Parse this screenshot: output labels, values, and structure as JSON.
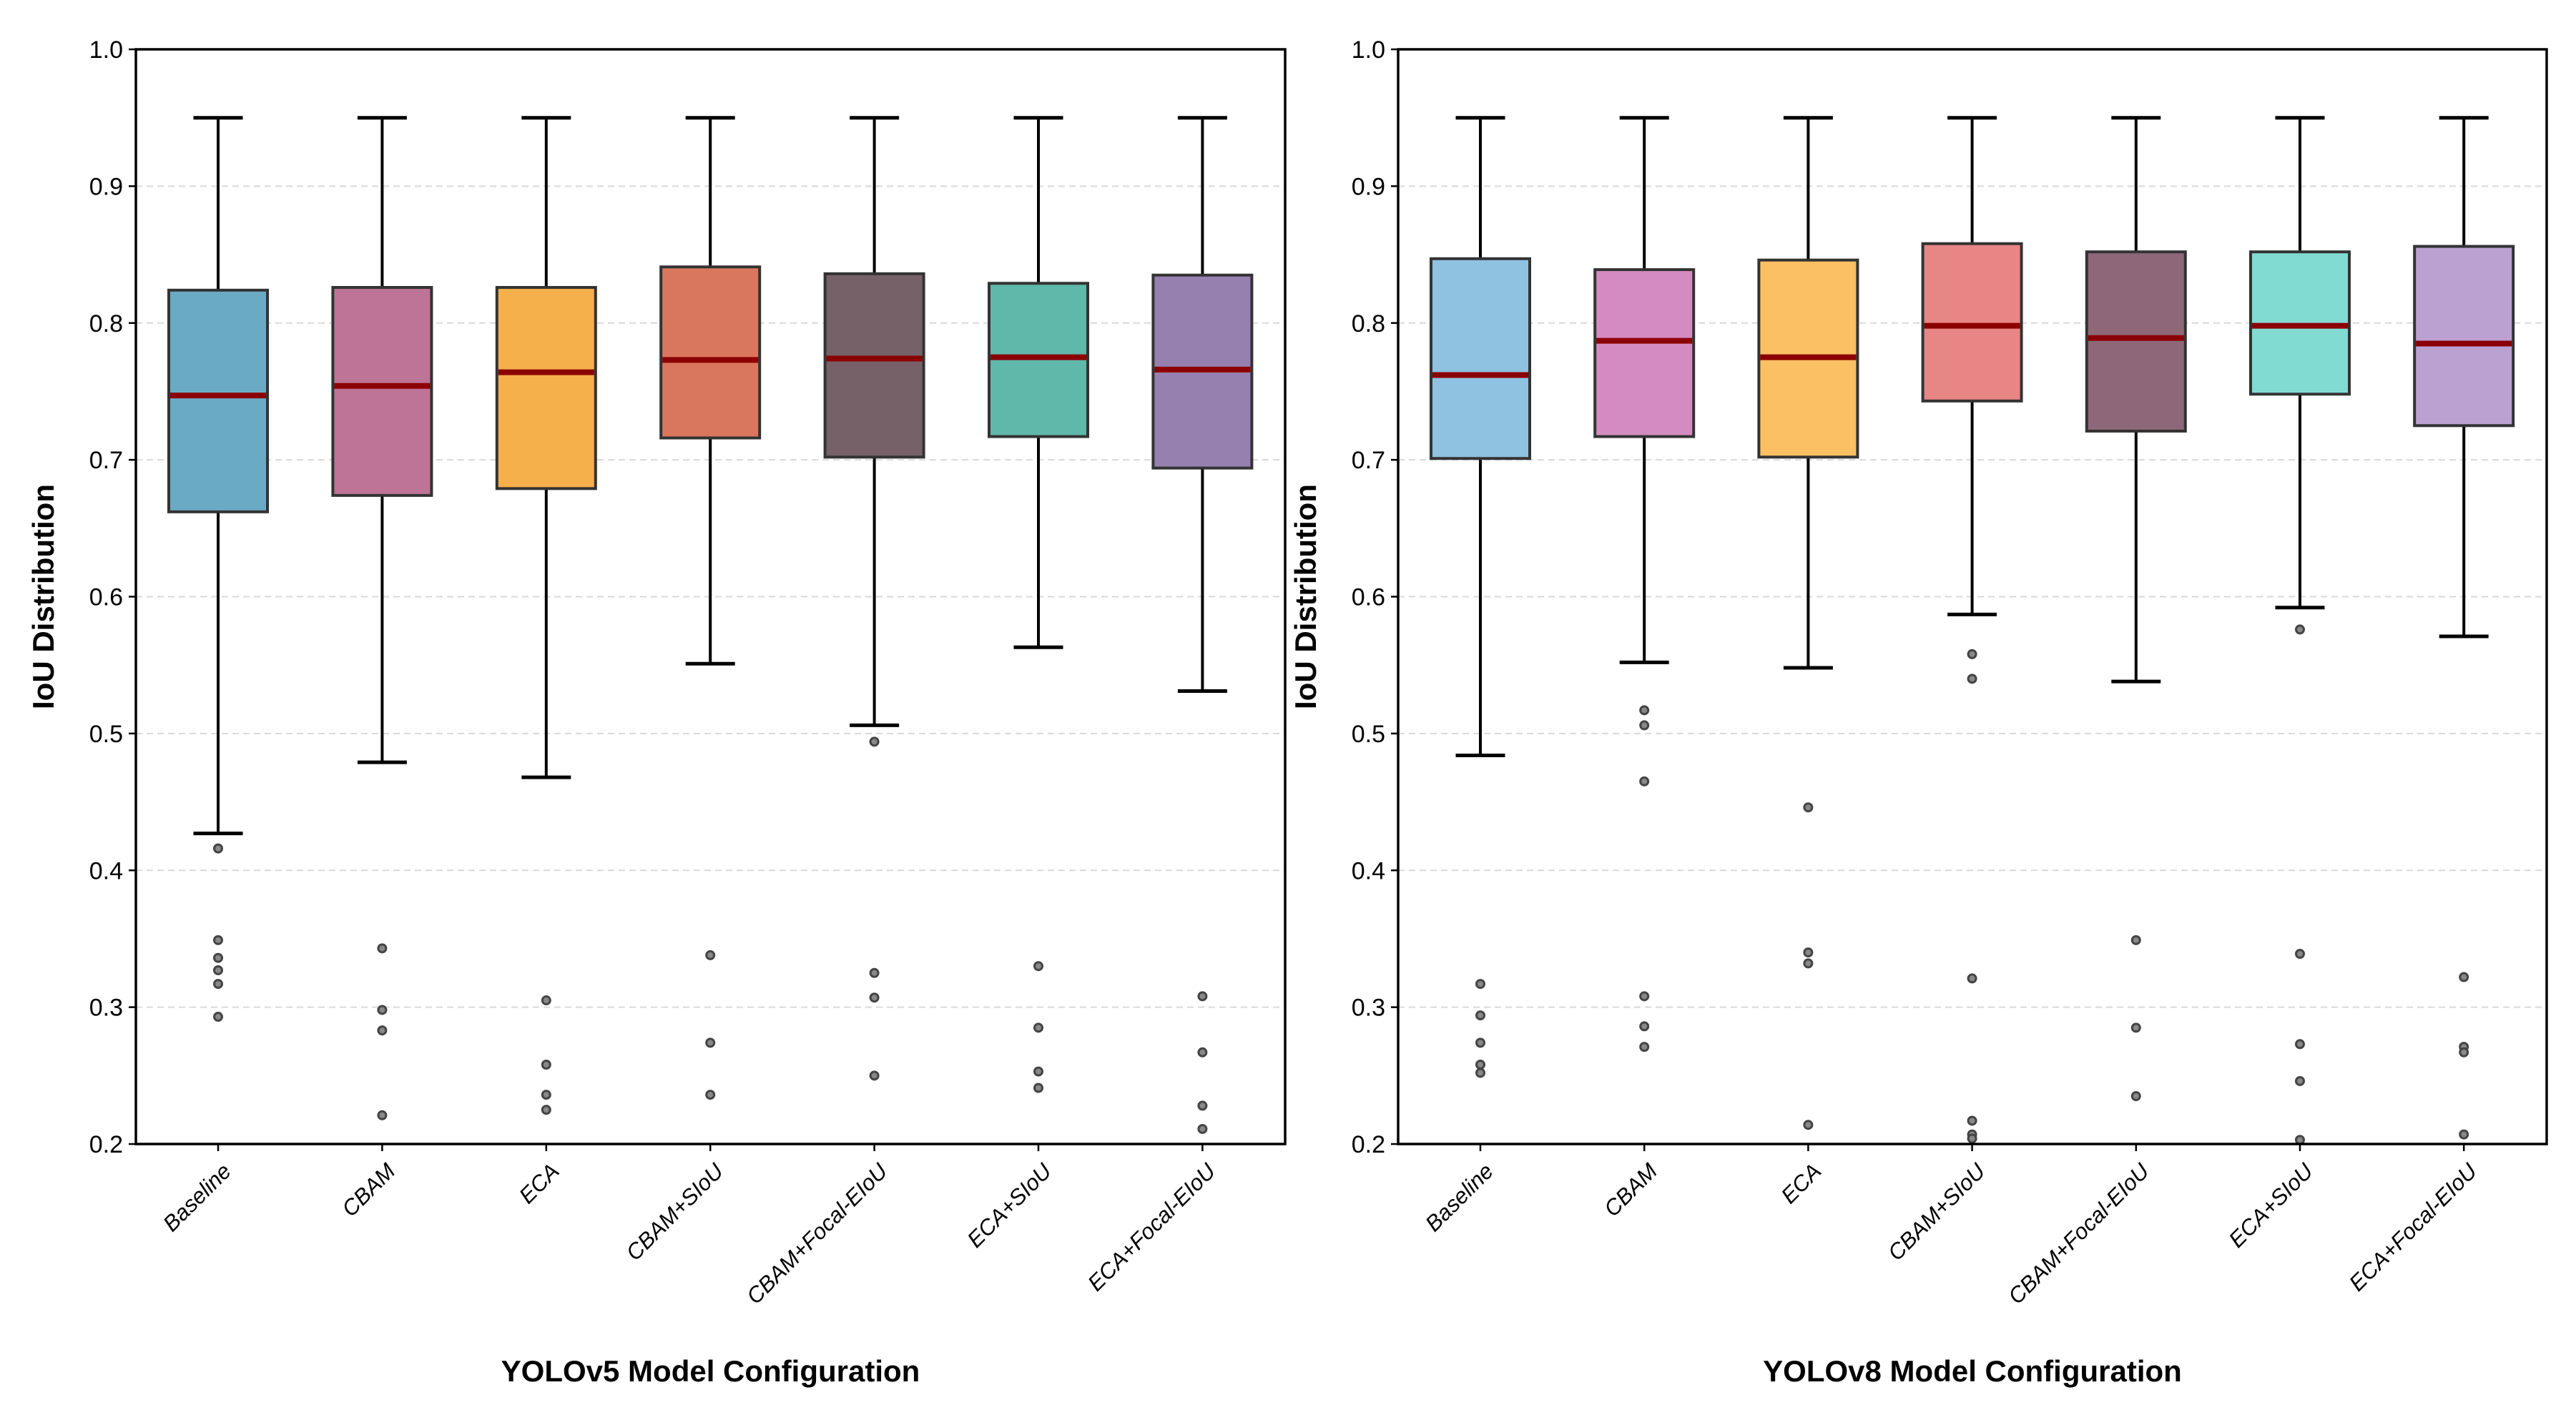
{
  "chart_data": [
    {
      "type": "box",
      "title": "",
      "xlabel": "YOLOv5 Model Configuration",
      "ylabel": "IoU Distribution",
      "ylim": [
        0.2,
        1.0
      ],
      "yticks": [
        "0.2",
        "0.3",
        "0.4",
        "0.5",
        "0.6",
        "0.7",
        "0.8",
        "0.9",
        "1.0"
      ],
      "grid": "horizontal dashed",
      "categories": [
        "Baseline",
        "CBAM",
        "ECA",
        "CBAM+SIoU",
        "CBAM+Focal-EIoU",
        "ECA+SIoU",
        "ECA+Focal-EIoU"
      ],
      "colors": [
        "#6BAAC5",
        "#BD7497",
        "#F5AF4B",
        "#D9775E",
        "#766169",
        "#5FB8AA",
        "#9580B0"
      ],
      "median_color": "#8B0000",
      "boxes": [
        {
          "whisker_high": 0.95,
          "q3": 0.824,
          "median": 0.747,
          "q1": 0.662,
          "whisker_low": 0.427,
          "outliers": [
            0.416,
            0.349,
            0.336,
            0.327,
            0.317,
            0.293
          ]
        },
        {
          "whisker_high": 0.95,
          "q3": 0.826,
          "median": 0.754,
          "q1": 0.674,
          "whisker_low": 0.479,
          "outliers": [
            0.343,
            0.298,
            0.283,
            0.221
          ]
        },
        {
          "whisker_high": 0.95,
          "q3": 0.826,
          "median": 0.764,
          "q1": 0.679,
          "whisker_low": 0.468,
          "outliers": [
            0.305,
            0.258,
            0.236,
            0.225
          ]
        },
        {
          "whisker_high": 0.95,
          "q3": 0.841,
          "median": 0.773,
          "q1": 0.716,
          "whisker_low": 0.551,
          "outliers": [
            0.338,
            0.274,
            0.236
          ]
        },
        {
          "whisker_high": 0.95,
          "q3": 0.836,
          "median": 0.774,
          "q1": 0.702,
          "whisker_low": 0.506,
          "outliers": [
            0.494,
            0.325,
            0.307,
            0.25
          ]
        },
        {
          "whisker_high": 0.95,
          "q3": 0.829,
          "median": 0.775,
          "q1": 0.717,
          "whisker_low": 0.563,
          "outliers": [
            0.33,
            0.285,
            0.253,
            0.241
          ]
        },
        {
          "whisker_high": 0.95,
          "q3": 0.835,
          "median": 0.766,
          "q1": 0.694,
          "whisker_low": 0.531,
          "outliers": [
            0.308,
            0.267,
            0.228,
            0.211
          ]
        }
      ]
    },
    {
      "type": "box",
      "title": "",
      "xlabel": "YOLOv8 Model Configuration",
      "ylabel": "IoU Distribution",
      "ylim": [
        0.2,
        1.0
      ],
      "yticks": [
        "0.2",
        "0.3",
        "0.4",
        "0.5",
        "0.6",
        "0.7",
        "0.8",
        "0.9",
        "1.0"
      ],
      "grid": "horizontal dashed",
      "categories": [
        "Baseline",
        "CBAM",
        "ECA",
        "CBAM+SIoU",
        "CBAM+Focal-EIoU",
        "ECA+SIoU",
        "ECA+Focal-EIoU"
      ],
      "colors": [
        "#8FC1E0",
        "#D48BC2",
        "#FAC063",
        "#E88585",
        "#8E6878",
        "#82DBD3",
        "#BBA1D1"
      ],
      "median_color": "#8B0000",
      "boxes": [
        {
          "whisker_high": 0.95,
          "q3": 0.847,
          "median": 0.762,
          "q1": 0.701,
          "whisker_low": 0.484,
          "outliers": [
            0.317,
            0.294,
            0.274,
            0.258,
            0.252
          ]
        },
        {
          "whisker_high": 0.95,
          "q3": 0.839,
          "median": 0.787,
          "q1": 0.717,
          "whisker_low": 0.552,
          "outliers": [
            0.517,
            0.506,
            0.465,
            0.308,
            0.286,
            0.271
          ]
        },
        {
          "whisker_high": 0.95,
          "q3": 0.846,
          "median": 0.775,
          "q1": 0.702,
          "whisker_low": 0.548,
          "outliers": [
            0.446,
            0.34,
            0.332,
            0.214
          ]
        },
        {
          "whisker_high": 0.95,
          "q3": 0.858,
          "median": 0.798,
          "q1": 0.743,
          "whisker_low": 0.587,
          "outliers": [
            0.558,
            0.54,
            0.321,
            0.217,
            0.207,
            0.204
          ]
        },
        {
          "whisker_high": 0.95,
          "q3": 0.852,
          "median": 0.789,
          "q1": 0.721,
          "whisker_low": 0.538,
          "outliers": [
            0.349,
            0.285,
            0.235
          ]
        },
        {
          "whisker_high": 0.95,
          "q3": 0.852,
          "median": 0.798,
          "q1": 0.748,
          "whisker_low": 0.592,
          "outliers": [
            0.576,
            0.339,
            0.273,
            0.246,
            0.203
          ]
        },
        {
          "whisker_high": 0.95,
          "q3": 0.856,
          "median": 0.785,
          "q1": 0.725,
          "whisker_low": 0.571,
          "outliers": [
            0.322,
            0.271,
            0.267,
            0.207
          ]
        }
      ]
    }
  ]
}
